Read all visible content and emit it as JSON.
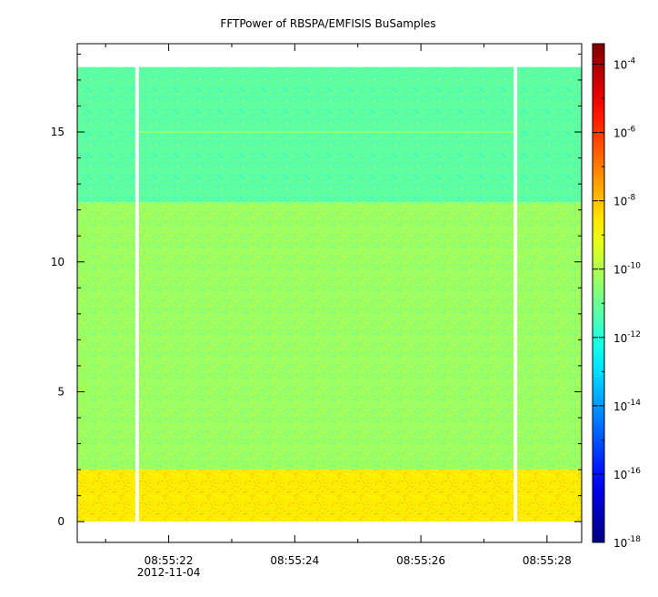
{
  "chart_data": {
    "type": "heatmap",
    "title": "FFTPower of RBSPA/EMFISIS  BuSamples",
    "xlabel": "",
    "ylabel": "",
    "x_ticks": [
      {
        "t": 22,
        "label": "08:55:22",
        "sublabel": "2012-11-04"
      },
      {
        "t": 24,
        "label": "08:55:24",
        "sublabel": ""
      },
      {
        "t": 26,
        "label": "08:55:26",
        "sublabel": ""
      },
      {
        "t": 28,
        "label": "08:55:28",
        "sublabel": ""
      }
    ],
    "x_minor_ticks": [
      21,
      23,
      25,
      27
    ],
    "xlim_seconds_after_08_55": [
      20.55,
      28.55
    ],
    "y_ticks": [
      0,
      5,
      10,
      15
    ],
    "ylim": [
      -0.8,
      18.4
    ],
    "zscale": "log",
    "zlim_exponent": [
      -18,
      -3.4
    ],
    "colorbar_ticks": [
      {
        "base": "10",
        "exp": "-4",
        "value": -4
      },
      {
        "base": "10",
        "exp": "-6",
        "value": -6
      },
      {
        "base": "10",
        "exp": "-8",
        "value": -8
      },
      {
        "base": "10",
        "exp": "-10",
        "value": -10
      },
      {
        "base": "10",
        "exp": "-12",
        "value": -12
      },
      {
        "base": "10",
        "exp": "-14",
        "value": -14
      },
      {
        "base": "10",
        "exp": "-16",
        "value": -16
      },
      {
        "base": "10",
        "exp": "-18",
        "value": -18
      }
    ],
    "data_extent": {
      "y_min": 0,
      "y_max": 17.5,
      "t_start": 20.55,
      "t_end": 28.55
    },
    "gaps_seconds": [
      21.5,
      27.5
    ],
    "bands": [
      {
        "y_from": 0,
        "y_to": 2,
        "log_power": -8.6
      },
      {
        "y_from": 2,
        "y_to": 12.3,
        "log_power": -10.3
      },
      {
        "y_from": 12.3,
        "y_to": 17.5,
        "log_power": -11.2
      }
    ],
    "lines": [
      {
        "y": 15.0,
        "log_power": -10.2
      }
    ]
  },
  "colors": {
    "background": "#ffffff",
    "axis": "#000000",
    "gap": "#ffffff"
  }
}
